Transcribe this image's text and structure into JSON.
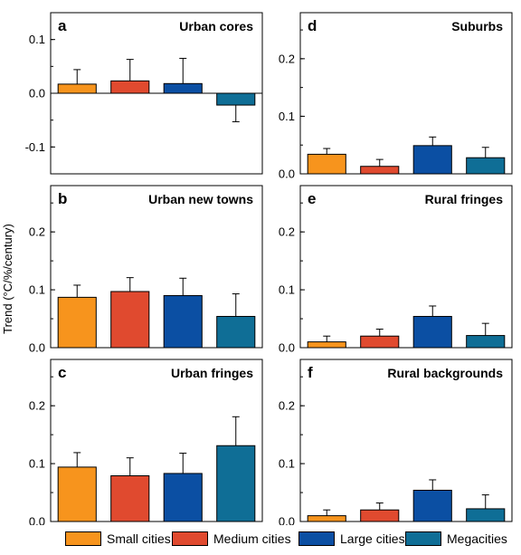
{
  "chart_data": {
    "type": "bar",
    "ylabel": "Trend (°C/%/century)",
    "categories": [
      "Small cities",
      "Medium cities",
      "Large cities",
      "Megacities"
    ],
    "colors": [
      "#f7941d",
      "#e04a2f",
      "#0b4fa3",
      "#0f6e96"
    ],
    "panels": [
      {
        "label": "a",
        "title": "Urban cores",
        "ylim": [
          -0.15,
          0.15
        ],
        "yticks": [
          "0.1",
          "0.0",
          "-0.1"
        ],
        "ytick_values": [
          0.1,
          0,
          -0.1
        ],
        "values": [
          0.017,
          0.023,
          0.018,
          -0.022
        ],
        "errors": [
          0.027,
          0.04,
          0.047,
          0.031
        ]
      },
      {
        "label": "d",
        "title": "Suburbs",
        "ylim": [
          0,
          0.28
        ],
        "yticks": [
          "0.0",
          "0.1",
          "0.2"
        ],
        "ytick_values": [
          0,
          0.1,
          0.2
        ],
        "values": [
          0.034,
          0.013,
          0.049,
          0.028
        ],
        "errors": [
          0.01,
          0.012,
          0.015,
          0.018
        ]
      },
      {
        "label": "b",
        "title": "Urban new towns",
        "ylim": [
          0,
          0.28
        ],
        "yticks": [
          "0.0",
          "0.1",
          "0.2"
        ],
        "ytick_values": [
          0,
          0.1,
          0.2
        ],
        "values": [
          0.087,
          0.097,
          0.09,
          0.054
        ],
        "errors": [
          0.021,
          0.024,
          0.03,
          0.039
        ]
      },
      {
        "label": "e",
        "title": "Rural fringes",
        "ylim": [
          0,
          0.28
        ],
        "yticks": [
          "0.0",
          "0.1",
          "0.2"
        ],
        "ytick_values": [
          0,
          0.1,
          0.2
        ],
        "values": [
          0.01,
          0.02,
          0.054,
          0.021
        ],
        "errors": [
          0.01,
          0.012,
          0.018,
          0.021
        ]
      },
      {
        "label": "c",
        "title": "Urban fringes",
        "ylim": [
          0,
          0.28
        ],
        "yticks": [
          "0.0",
          "0.1",
          "0.2"
        ],
        "ytick_values": [
          0,
          0.1,
          0.2
        ],
        "values": [
          0.094,
          0.079,
          0.083,
          0.131
        ],
        "errors": [
          0.025,
          0.031,
          0.035,
          0.05
        ]
      },
      {
        "label": "f",
        "title": "Rural backgrounds",
        "ylim": [
          0,
          0.28
        ],
        "yticks": [
          "0.0",
          "0.1",
          "0.2"
        ],
        "ytick_values": [
          0,
          0.1,
          0.2
        ],
        "values": [
          0.01,
          0.02,
          0.054,
          0.022
        ],
        "errors": [
          0.01,
          0.012,
          0.018,
          0.024
        ]
      }
    ],
    "legend_position": "bottom"
  }
}
